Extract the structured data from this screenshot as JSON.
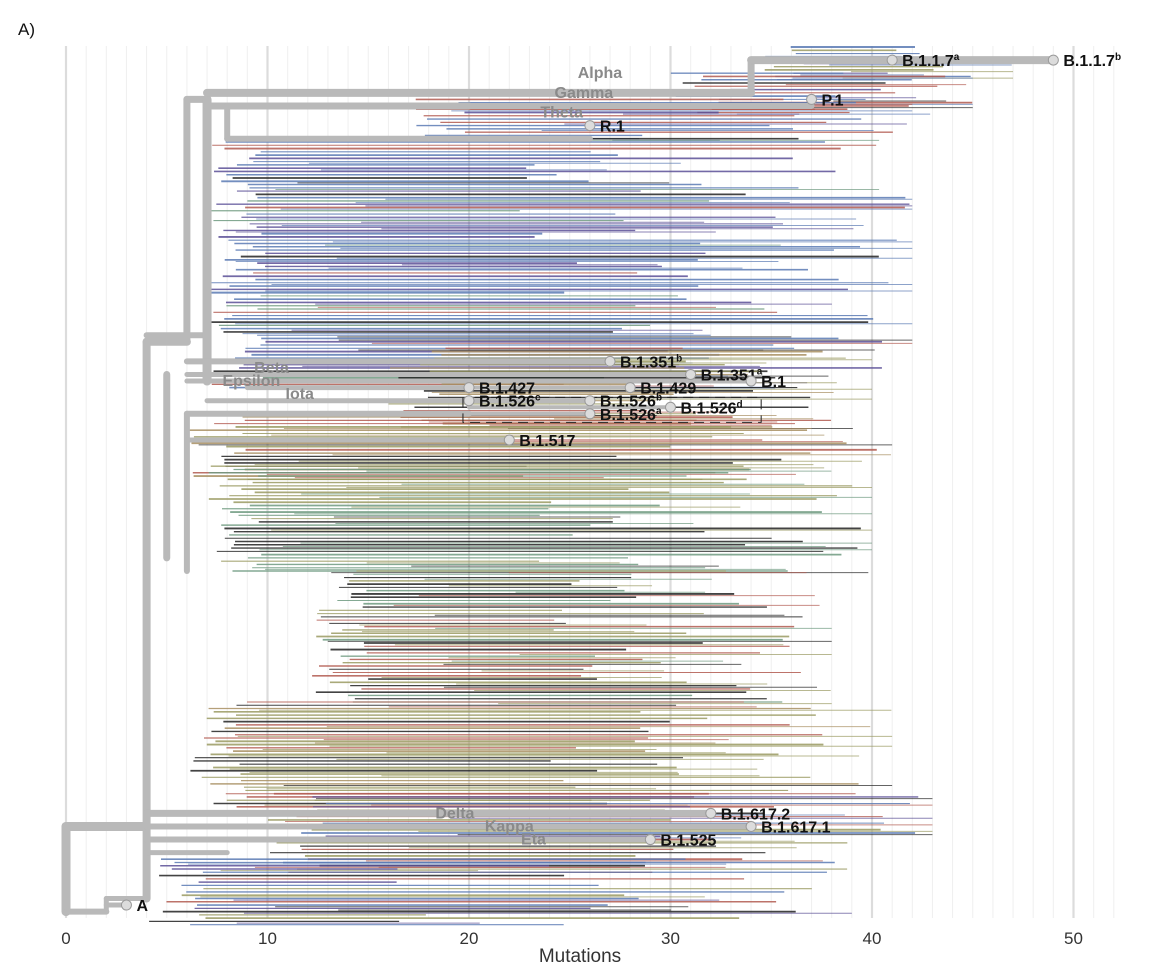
{
  "panel": {
    "label": "A)"
  },
  "colors": {
    "backbone": "#b9b9b9",
    "grid_major": "#dcdcdc",
    "grid_minor": "#efefef",
    "clade_label": "#8a8a8a",
    "lineage_label": "#111111",
    "purple": "#5a4f96",
    "blue": "#5b7ab4",
    "red": "#b25b50",
    "olive": "#9a9a62",
    "green": "#6f9a80",
    "tan": "#a88f62",
    "dark": "#222222"
  },
  "chart_data": {
    "type": "tree",
    "xlabel": "Mutations",
    "xlim": [
      0,
      53
    ],
    "x_ticks": [
      0,
      10,
      20,
      30,
      40,
      50
    ],
    "x_tick_labels": [
      "0",
      "10",
      "20",
      "30",
      "40",
      "50"
    ],
    "clade_labels": [
      {
        "text": "Alpha",
        "x": 26.5,
        "row": 4
      },
      {
        "text": "Gamma",
        "x": 25.7,
        "row": 7
      },
      {
        "text": "Theta",
        "x": 24.6,
        "row": 10
      },
      {
        "text": "Beta",
        "x": 10.2,
        "row": 49
      },
      {
        "text": "Epsilon",
        "x": 9.2,
        "row": 51
      },
      {
        "text": "Iota",
        "x": 11.6,
        "row": 53
      },
      {
        "text": "Delta",
        "x": 19.3,
        "row": 117
      },
      {
        "text": "Kappa",
        "x": 22.0,
        "row": 119
      },
      {
        "text": "Eta",
        "x": 23.2,
        "row": 121
      }
    ],
    "lineage_labels": [
      {
        "text": "B.1.1.7",
        "sup": "a",
        "x": 41,
        "row": 2
      },
      {
        "text": "B.1.1.7",
        "sup": "b",
        "x": 49,
        "row": 2
      },
      {
        "text": "P.1",
        "x": 37,
        "row": 8
      },
      {
        "text": "R.1",
        "x": 26,
        "row": 12
      },
      {
        "text": "B.1.351",
        "sup": "b",
        "x": 27,
        "row": 48
      },
      {
        "text": "B.1.351",
        "sup": "a",
        "x": 31,
        "row": 50
      },
      {
        "text": "B.1",
        "x": 34,
        "row": 51
      },
      {
        "text": "B.1.427",
        "x": 20,
        "row": 52
      },
      {
        "text": "B.1.429",
        "x": 28,
        "row": 52
      },
      {
        "text": "B.1.526",
        "sup": "c",
        "x": 20,
        "row": 54
      },
      {
        "text": "B.1.526",
        "sup": "b",
        "x": 26,
        "row": 54
      },
      {
        "text": "B.1.526",
        "sup": "d",
        "x": 30,
        "row": 55
      },
      {
        "text": "B.1.526",
        "sup": "a",
        "x": 26,
        "row": 56
      },
      {
        "text": "B.1.517",
        "x": 22,
        "row": 60
      },
      {
        "text": "B.1.617.2",
        "x": 32,
        "row": 117
      },
      {
        "text": "B.1.617.1",
        "x": 34,
        "row": 119
      },
      {
        "text": "B.1.525",
        "x": 29,
        "row": 121
      },
      {
        "text": "A",
        "x": 3,
        "row": 131
      }
    ]
  }
}
